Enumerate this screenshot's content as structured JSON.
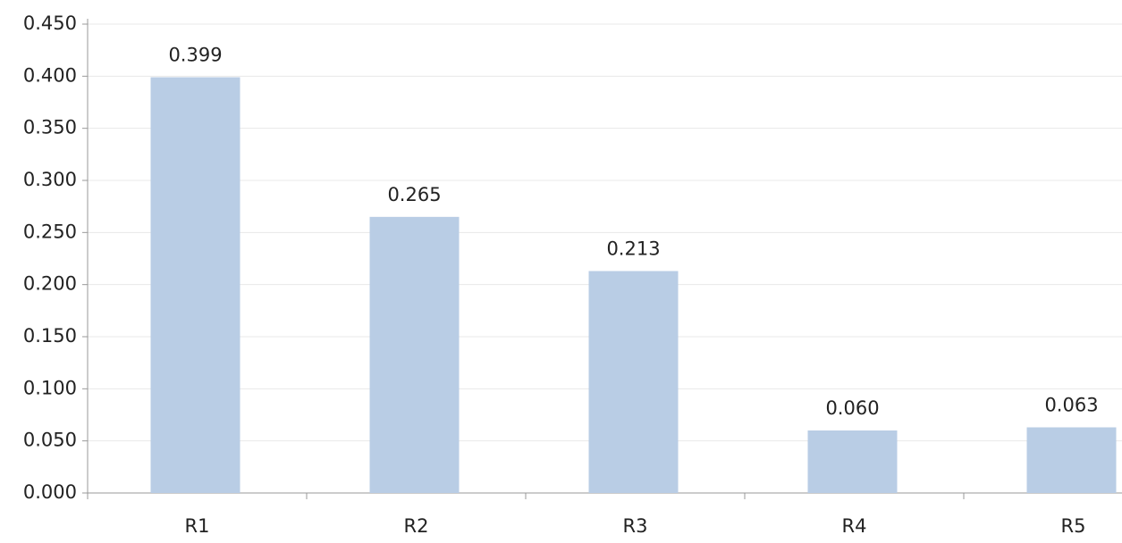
{
  "chart_data": {
    "type": "bar",
    "categories": [
      "R1",
      "R2",
      "R3",
      "R4",
      "R5"
    ],
    "values": [
      0.399,
      0.265,
      0.213,
      0.06,
      0.063
    ],
    "value_labels": [
      "0.399",
      "0.265",
      "0.213",
      "0.060",
      "0.063"
    ],
    "color": "#b9cde5",
    "ylim": [
      0,
      0.45
    ],
    "yticks": [
      {
        "value": 0,
        "label": "0.000"
      },
      {
        "value": 0.05,
        "label": "0.050"
      },
      {
        "value": 0.1,
        "label": "0.100"
      },
      {
        "value": 0.15,
        "label": "0.150"
      },
      {
        "value": 0.2,
        "label": "0.200"
      },
      {
        "value": 0.25,
        "label": "0.250"
      },
      {
        "value": 0.3,
        "label": "0.300"
      },
      {
        "value": 0.35,
        "label": "0.350"
      },
      {
        "value": 0.4,
        "label": "0.400"
      },
      {
        "value": 0.45,
        "label": "0.450"
      }
    ],
    "grid": true
  }
}
